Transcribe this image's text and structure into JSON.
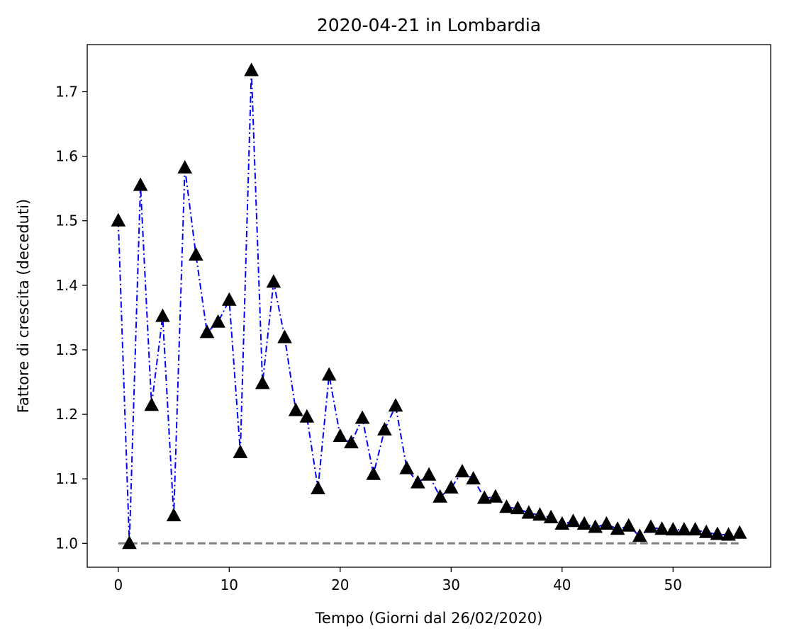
{
  "chart_data": {
    "type": "line",
    "title": "2020-04-21 in Lombardia",
    "xlabel": "Tempo (Giorni dal 26/02/2020)",
    "ylabel": "Fattore di crescita (deceduti)",
    "xlim": [
      -2.8,
      58.8
    ],
    "ylim": [
      0.963,
      1.773
    ],
    "xticks": [
      0,
      10,
      20,
      30,
      40,
      50
    ],
    "yticks": [
      1.0,
      1.1,
      1.2,
      1.3,
      1.4,
      1.5,
      1.6,
      1.7
    ],
    "grid": false,
    "colors": {
      "series": "#0000ff",
      "marker": "#000000",
      "reference": "#808080"
    },
    "series": [
      {
        "x": [
          0,
          1,
          2,
          3,
          4,
          5,
          6,
          7,
          8,
          9,
          10,
          11,
          12,
          13,
          14,
          15,
          16,
          17,
          18,
          19,
          20,
          21,
          22,
          23,
          24,
          25,
          26,
          27,
          28,
          29,
          30,
          31,
          32,
          33,
          34,
          35,
          36,
          37,
          38,
          39,
          40,
          41,
          42,
          43,
          44,
          45,
          46,
          47,
          48,
          49,
          50,
          51,
          52,
          53,
          54,
          55,
          56
        ],
        "values": [
          1.5,
          1.0,
          1.555,
          1.214,
          1.352,
          1.043,
          1.582,
          1.447,
          1.327,
          1.343,
          1.377,
          1.141,
          1.733,
          1.248,
          1.405,
          1.319,
          1.206,
          1.196,
          1.085,
          1.261,
          1.166,
          1.156,
          1.194,
          1.107,
          1.176,
          1.213,
          1.116,
          1.094,
          1.106,
          1.072,
          1.086,
          1.111,
          1.1,
          1.07,
          1.072,
          1.056,
          1.054,
          1.047,
          1.044,
          1.04,
          1.03,
          1.034,
          1.03,
          1.025,
          1.03,
          1.022,
          1.027,
          1.011,
          1.025,
          1.022,
          1.021,
          1.021,
          1.021,
          1.017,
          1.014,
          1.013,
          1.016
        ]
      },
      {
        "x": [
          0,
          56
        ],
        "values": [
          1.0,
          1.0
        ]
      }
    ]
  }
}
